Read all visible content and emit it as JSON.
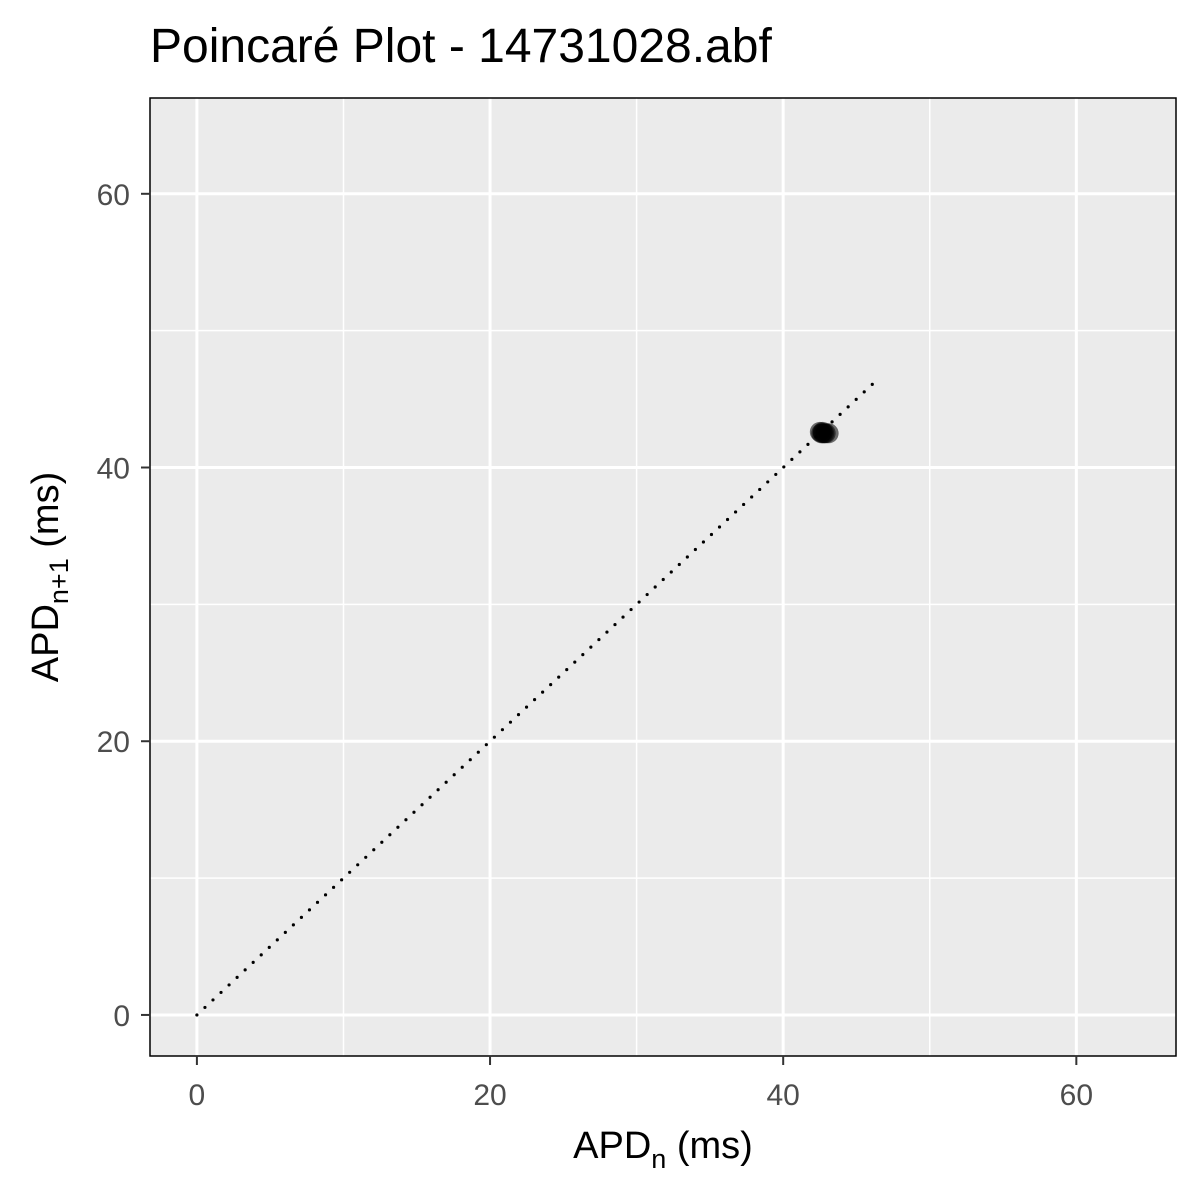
{
  "chart_data": {
    "type": "scatter",
    "title": "Poincaré Plot - 14731028.abf",
    "xlabel": {
      "base": "APD",
      "subscript": "n",
      "unit": " (ms)"
    },
    "ylabel": {
      "base": "APD",
      "subscript": "n+1",
      "unit": " (ms)"
    },
    "xlim": [
      -3.2,
      66.8
    ],
    "ylim": [
      -3.0,
      67.0
    ],
    "x_ticks": [
      0,
      20,
      40,
      60
    ],
    "y_ticks": [
      0,
      20,
      40,
      60
    ],
    "x_tick_labels": [
      "0",
      "20",
      "40",
      "60"
    ],
    "y_tick_labels": [
      "0",
      "20",
      "40",
      "60"
    ],
    "x_minor_grid": [
      10,
      30,
      50
    ],
    "y_minor_grid": [
      10,
      30,
      50
    ],
    "grid": true,
    "panel_background": "#ebebeb",
    "grid_color": "#ffffff",
    "point_color": "#000000",
    "identity_line": {
      "style": "dotted",
      "from": [
        0,
        0
      ],
      "to": [
        46.5,
        46.5
      ],
      "color": "#000000"
    },
    "series": [
      {
        "points": [
          {
            "x": 42.6,
            "y": 42.5
          },
          {
            "x": 42.7,
            "y": 42.5
          },
          {
            "x": 42.8,
            "y": 42.5
          },
          {
            "x": 42.9,
            "y": 42.5
          },
          {
            "x": 43.1,
            "y": 42.5
          },
          {
            "x": 42.5,
            "y": 42.6
          },
          {
            "x": 42.7,
            "y": 42.6
          }
        ]
      }
    ]
  }
}
